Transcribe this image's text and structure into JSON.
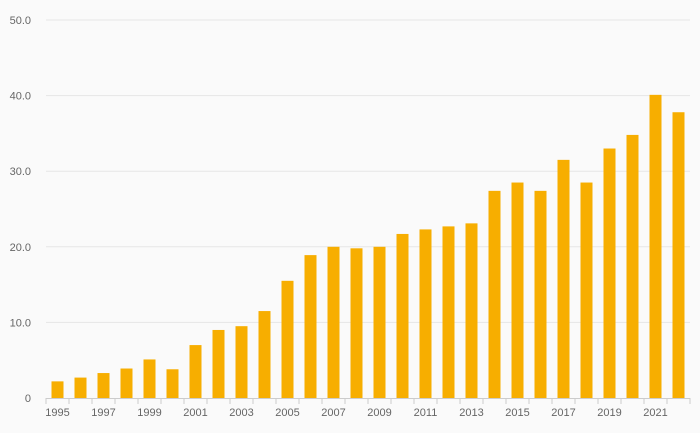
{
  "chart_data": {
    "type": "bar",
    "title": "",
    "xlabel": "",
    "ylabel": "",
    "categories": [
      "1995",
      "1996",
      "1997",
      "1998",
      "1999",
      "2000",
      "2001",
      "2002",
      "2003",
      "2004",
      "2005",
      "2006",
      "2007",
      "2008",
      "2009",
      "2010",
      "2011",
      "2012",
      "2013",
      "2014",
      "2015",
      "2016",
      "2017",
      "2018",
      "2019",
      "2020",
      "2021",
      "2022"
    ],
    "x_tick_labels": [
      "1995",
      "1997",
      "1999",
      "2001",
      "2003",
      "2005",
      "2007",
      "2009",
      "2011",
      "2013",
      "2015",
      "2017",
      "2019",
      "2021"
    ],
    "values": [
      2.2,
      2.7,
      3.3,
      3.9,
      5.1,
      3.8,
      7.0,
      9.0,
      9.5,
      11.5,
      15.5,
      18.9,
      20.0,
      19.8,
      20.0,
      21.7,
      22.3,
      22.7,
      23.1,
      27.4,
      28.5,
      27.4,
      31.5,
      28.5,
      33.0,
      34.8,
      40.1,
      37.8
    ],
    "ylim": [
      0,
      50
    ],
    "y_ticks": [
      0,
      10,
      20,
      30,
      40,
      50
    ],
    "y_tick_labels": [
      "0",
      "10.0",
      "20.0",
      "30.0",
      "40.0",
      "50.0"
    ],
    "grid": true,
    "legend": "none",
    "bar_color": "#f7ae00",
    "background": "#fafafa"
  }
}
